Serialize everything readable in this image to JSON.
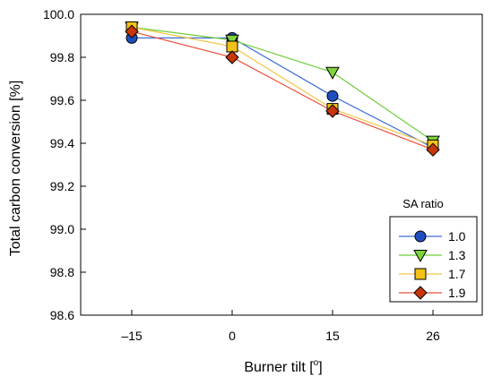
{
  "chart_data": {
    "type": "line",
    "categories": [
      "–15",
      "0",
      "15",
      "26"
    ],
    "xlabel_main": "Burner tilt [",
    "xlabel_sup": "o",
    "xlabel_end": "]",
    "ylabel": "Total carbon conversion [%]",
    "ylim": [
      98.6,
      100.0
    ],
    "yticks": [
      "98.6",
      "98.8",
      "99.0",
      "99.2",
      "99.4",
      "99.6",
      "99.8",
      "100.0"
    ],
    "grid": false,
    "legend": {
      "title": "SA ratio",
      "placement": "bottom-right"
    },
    "series": [
      {
        "name": "1.0",
        "marker": "circle",
        "line_color": "#3f6fd8",
        "fill": "#1f4fbf",
        "values": [
          99.89,
          99.89,
          99.62,
          99.38
        ]
      },
      {
        "name": "1.3",
        "marker": "triangle-down",
        "line_color": "#6fce3c",
        "fill": "#7fd43a",
        "values": [
          99.94,
          99.88,
          99.73,
          99.41
        ]
      },
      {
        "name": "1.7",
        "marker": "square",
        "line_color": "#f4c542",
        "fill": "#f2c316",
        "values": [
          99.94,
          99.85,
          99.56,
          99.39
        ]
      },
      {
        "name": "1.9",
        "marker": "diamond",
        "line_color": "#e8503c",
        "fill": "#c8360a",
        "values": [
          99.92,
          99.8,
          99.55,
          99.37
        ]
      }
    ]
  }
}
